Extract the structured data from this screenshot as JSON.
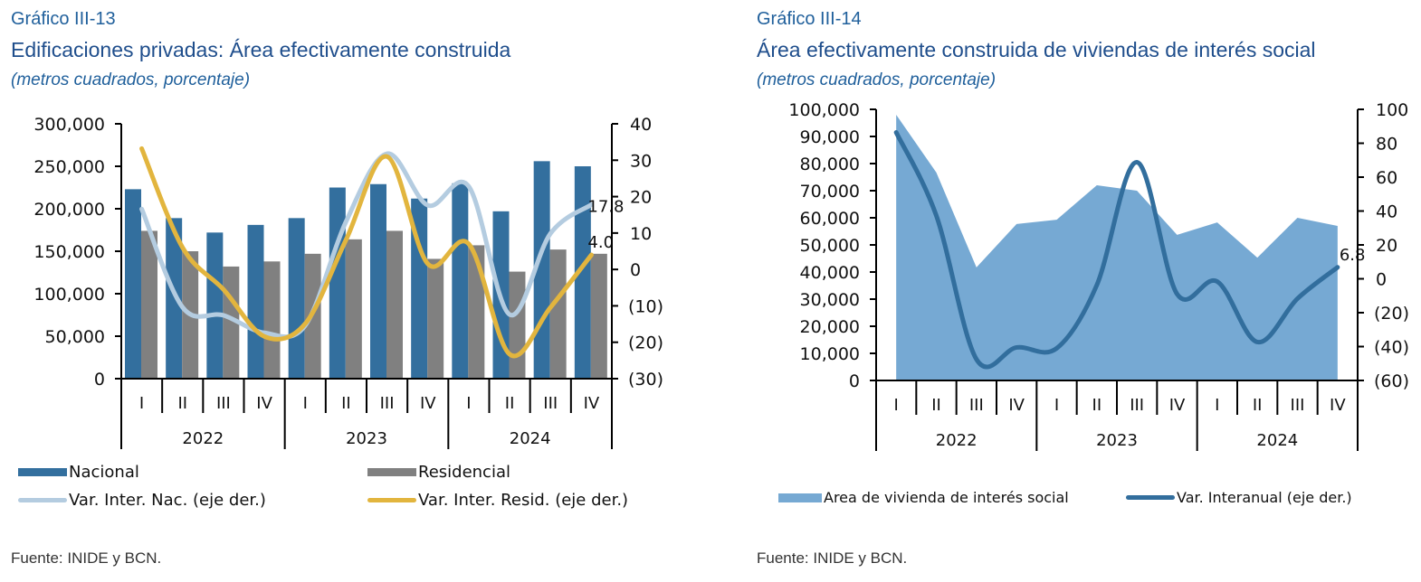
{
  "chart_data": [
    {
      "type": "bar",
      "id": "III-13",
      "number_label": "Gráfico III-13",
      "title": "Edificaciones privadas: Área efectivamente construida",
      "subtitle": "(metros cuadrados, porcentaje)",
      "source": "Fuente: INIDE y BCN.",
      "categories": [
        "I",
        "II",
        "III",
        "IV",
        "I",
        "II",
        "III",
        "IV",
        "I",
        "II",
        "III",
        "IV"
      ],
      "year_groups": [
        {
          "label": "2022",
          "span": 4
        },
        {
          "label": "2023",
          "span": 4
        },
        {
          "label": "2024",
          "span": 4
        }
      ],
      "ylim": [
        0,
        300000
      ],
      "yticks": [
        0,
        50000,
        100000,
        150000,
        200000,
        250000,
        300000
      ],
      "ytick_labels": [
        "0",
        "50,000",
        "100,000",
        "150,000",
        "200,000",
        "250,000",
        "300,000"
      ],
      "y2lim": [
        -30,
        40
      ],
      "y2ticks": [
        -30,
        -20,
        -10,
        0,
        10,
        20,
        30,
        40
      ],
      "y2tick_labels": [
        "(30)",
        "(20)",
        "(10)",
        "0",
        "10",
        "20",
        "30",
        "40"
      ],
      "grid": false,
      "legend_position": "bottom",
      "series": [
        {
          "name": "Nacional",
          "type": "bar",
          "axis": "left",
          "color": "#336f9e",
          "values": [
            223000,
            189000,
            172000,
            181000,
            189000,
            225000,
            229000,
            212000,
            230000,
            197000,
            256000,
            250000
          ]
        },
        {
          "name": "Residencial",
          "type": "bar",
          "axis": "left",
          "color": "#808080",
          "values": [
            174000,
            150000,
            132000,
            138000,
            147000,
            164000,
            174000,
            141000,
            157000,
            126000,
            152000,
            147000
          ]
        },
        {
          "name": "Var. Inter. Nac. (eje der.)",
          "type": "line",
          "axis": "right",
          "color": "#b4cce0",
          "values": [
            16.6,
            -10.4,
            -12.6,
            -17.4,
            -15.4,
            13.2,
            31.8,
            17.6,
            22.8,
            -12.4,
            9.9,
            17.8
          ],
          "end_label": "17.8"
        },
        {
          "name": "Var. Inter. Resid. (eje der.)",
          "type": "line",
          "axis": "right",
          "color": "#e2b53e",
          "values": [
            33.2,
            6.0,
            -5.5,
            -18.4,
            -14.9,
            8.2,
            31.0,
            1.5,
            7.0,
            -23.3,
            -10.4,
            4.0
          ],
          "end_label": "4.0"
        }
      ]
    },
    {
      "type": "area",
      "id": "III-14",
      "number_label": "Gráfico III-14",
      "title": "Área efectivamente construida de viviendas de interés social",
      "subtitle": "(metros cuadrados, porcentaje)",
      "source": "Fuente: INIDE y BCN.",
      "categories": [
        "I",
        "II",
        "III",
        "IV",
        "I",
        "II",
        "III",
        "IV",
        "I",
        "II",
        "III",
        "IV"
      ],
      "year_groups": [
        {
          "label": "2022",
          "span": 4
        },
        {
          "label": "2023",
          "span": 4
        },
        {
          "label": "2024",
          "span": 4
        }
      ],
      "ylim": [
        0,
        100000
      ],
      "yticks": [
        0,
        10000,
        20000,
        30000,
        40000,
        50000,
        60000,
        70000,
        80000,
        90000,
        100000
      ],
      "ytick_labels": [
        "0",
        "10,000",
        "20,000",
        "30,000",
        "40,000",
        "50,000",
        "60,000",
        "70,000",
        "80,000",
        "90,000",
        "100,000"
      ],
      "y2lim": [
        -60,
        100
      ],
      "y2ticks": [
        -60,
        -40,
        -20,
        0,
        20,
        40,
        60,
        80,
        100
      ],
      "y2tick_labels": [
        "(60)",
        "(40)",
        "(20)",
        "0",
        "20",
        "40",
        "60",
        "80",
        "100"
      ],
      "grid": false,
      "legend_position": "bottom",
      "series": [
        {
          "name": "Area de vivienda de interés social",
          "type": "area",
          "axis": "left",
          "color": "#76a9d3",
          "values": [
            98000,
            76700,
            41700,
            57700,
            59300,
            72000,
            70000,
            53700,
            58300,
            45300,
            60000,
            57000
          ]
        },
        {
          "name": "Var. Interanual (eje der.)",
          "type": "line",
          "axis": "right",
          "color": "#326e9d",
          "values": [
            86.4,
            37.3,
            -47.5,
            -40.5,
            -41.0,
            -3.7,
            68.8,
            -9.0,
            -1.6,
            -37.3,
            -11.7,
            6.8
          ],
          "end_label": "6.8"
        }
      ]
    }
  ]
}
